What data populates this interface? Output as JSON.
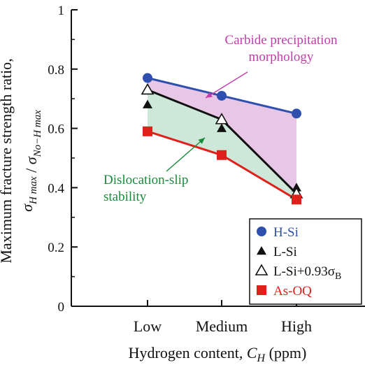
{
  "chart_data": {
    "type": "line",
    "categories": [
      "Low",
      "Medium",
      "High"
    ],
    "x_positions": [
      1,
      2,
      3
    ],
    "ylim": [
      0,
      1
    ],
    "yticks": [
      0,
      0.2,
      0.4,
      0.6,
      0.8,
      1
    ],
    "ytick_labels": [
      "0",
      "0.2",
      "0.4",
      "0.6",
      "0.8",
      "1"
    ],
    "xlabel": "Hydrogen content, C_H (ppm)",
    "ylabel_line1": "Maximum fracture strength ratio,",
    "ylabel_line2": "σ_H max / σ_No−H max",
    "series": [
      {
        "name": "H-Si",
        "values": [
          0.77,
          0.71,
          0.65
        ],
        "color": "#2e4fae",
        "marker": "circle",
        "line": true
      },
      {
        "name": "L-Si",
        "values": [
          0.68,
          0.6,
          0.4
        ],
        "color": "#111111",
        "marker": "triangle-filled",
        "line": false
      },
      {
        "name": "L-Si+0.93σ_B",
        "values": [
          0.73,
          0.63,
          0.38
        ],
        "color": "#111111",
        "marker": "triangle-open",
        "line": true
      },
      {
        "name": "As-OQ",
        "values": [
          0.59,
          0.51,
          0.36
        ],
        "color": "#e0201b",
        "marker": "square",
        "line": true
      }
    ],
    "regions": [
      {
        "between": [
          "H-Si",
          "L-Si+0.93σ_B"
        ],
        "color": "#e8c6e6"
      },
      {
        "between": [
          "L-Si+0.93σ_B",
          "As-OQ"
        ],
        "color": "#cde8d8"
      }
    ],
    "annotations": [
      {
        "lines": [
          "Carbide precipitation",
          "morphology"
        ],
        "color": "#c33cab"
      },
      {
        "lines": [
          "Dislocation-slip",
          "stability"
        ],
        "color": "#1c8a3c"
      }
    ],
    "legend": {
      "placement": "bottom-right",
      "entries": [
        {
          "label": "H-Si",
          "color": "#2e4fae"
        },
        {
          "label": "L-Si",
          "color": "#111111"
        },
        {
          "label": "L-Si+0.93σ_B",
          "color": "#111111"
        },
        {
          "label": "As-OQ",
          "color": "#e0201b"
        }
      ]
    }
  }
}
